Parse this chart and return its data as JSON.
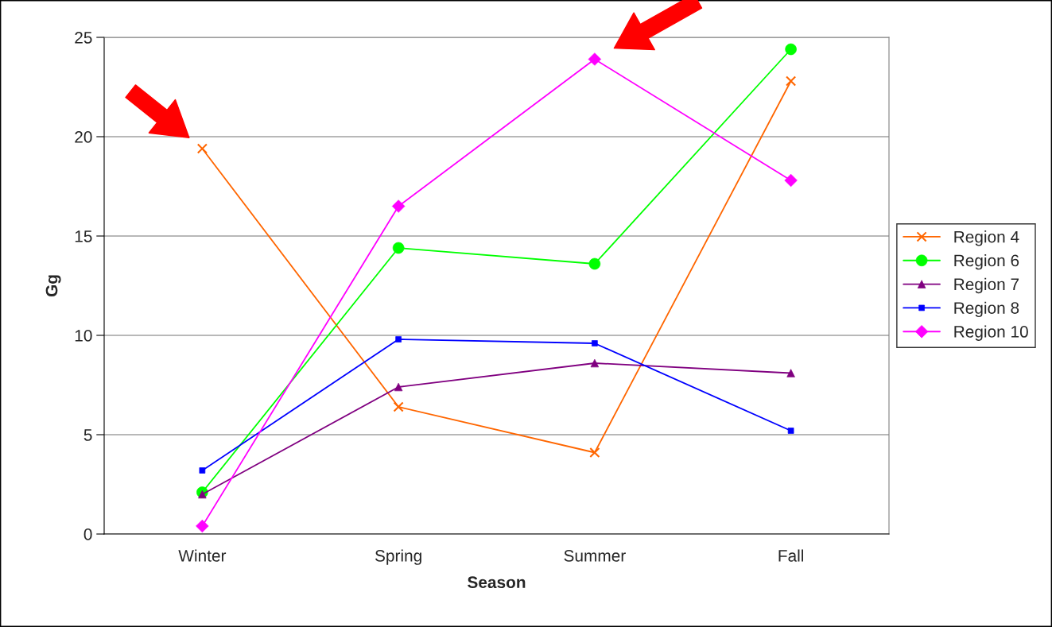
{
  "chart_data": {
    "type": "line",
    "xlabel": "Season",
    "ylabel": "Gg",
    "categories": [
      "Winter",
      "Spring",
      "Summer",
      "Fall"
    ],
    "ylim": [
      0,
      25
    ],
    "yticks": [
      0,
      5,
      10,
      15,
      20,
      25
    ],
    "grid": "y",
    "legend": "right",
    "line_style": "solid",
    "series": [
      {
        "name": "Region 4",
        "color": "#ff6600",
        "marker": "cross",
        "values": [
          19.4,
          6.4,
          4.1,
          22.8
        ]
      },
      {
        "name": "Region 6",
        "color": "#00ff00",
        "marker": "circle",
        "values": [
          2.1,
          14.4,
          13.6,
          24.4
        ]
      },
      {
        "name": "Region 7",
        "color": "#800080",
        "marker": "triangle",
        "values": [
          2.0,
          7.4,
          8.6,
          8.1
        ]
      },
      {
        "name": "Region 8",
        "color": "#0000ff",
        "marker": "square",
        "values": [
          3.2,
          9.8,
          9.6,
          5.2
        ]
      },
      {
        "name": "Region 10",
        "color": "#ff00ff",
        "marker": "diamond",
        "values": [
          0.4,
          16.5,
          23.9,
          17.8
        ]
      }
    ]
  }
}
